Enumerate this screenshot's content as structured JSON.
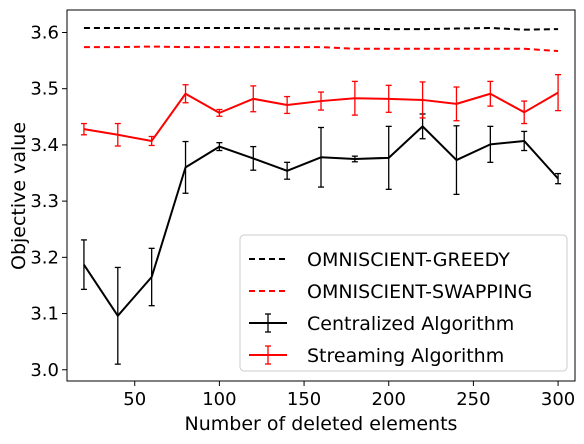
{
  "chart_data": {
    "type": "line",
    "xlabel": "Number of deleted elements",
    "ylabel": "Objective value",
    "xlim": [
      10,
      310
    ],
    "ylim": [
      2.98,
      3.64
    ],
    "xticks": [
      50,
      100,
      150,
      200,
      250,
      300
    ],
    "yticks": [
      3.0,
      3.1,
      3.2,
      3.3,
      3.4,
      3.5,
      3.6
    ],
    "grid": false,
    "legend_position": "lower-right",
    "x": [
      20,
      40,
      60,
      80,
      100,
      120,
      140,
      160,
      180,
      200,
      220,
      240,
      260,
      280,
      300
    ],
    "series": [
      {
        "name": "OMNISCIENT-GREEDY",
        "color": "#000000",
        "style": "dashed",
        "values": [
          3.608,
          3.608,
          3.608,
          3.608,
          3.608,
          3.608,
          3.607,
          3.607,
          3.607,
          3.606,
          3.606,
          3.607,
          3.608,
          3.605,
          3.606
        ]
      },
      {
        "name": "OMNISCIENT-SWAPPING",
        "color": "#ff0000",
        "style": "dashed",
        "values": [
          3.574,
          3.574,
          3.575,
          3.574,
          3.574,
          3.574,
          3.574,
          3.574,
          3.571,
          3.571,
          3.571,
          3.571,
          3.571,
          3.571,
          3.567
        ]
      },
      {
        "name": "Centralized Algorithm",
        "color": "#000000",
        "style": "solid",
        "values": [
          3.187,
          3.096,
          3.165,
          3.36,
          3.397,
          3.376,
          3.354,
          3.378,
          3.375,
          3.377,
          3.433,
          3.373,
          3.401,
          3.407,
          3.34
        ],
        "errors": [
          0.044,
          0.086,
          0.051,
          0.046,
          0.007,
          0.021,
          0.015,
          0.053,
          0.005,
          0.056,
          0.022,
          0.061,
          0.032,
          0.017,
          0.009
        ]
      },
      {
        "name": "Streaming Algorithm",
        "color": "#ff0000",
        "style": "solid",
        "values": [
          3.428,
          3.418,
          3.407,
          3.491,
          3.457,
          3.482,
          3.471,
          3.478,
          3.483,
          3.482,
          3.48,
          3.473,
          3.491,
          3.458,
          3.493
        ],
        "errors": [
          0.01,
          0.02,
          0.008,
          0.016,
          0.006,
          0.023,
          0.015,
          0.016,
          0.03,
          0.024,
          0.032,
          0.03,
          0.022,
          0.02,
          0.032
        ]
      }
    ]
  }
}
